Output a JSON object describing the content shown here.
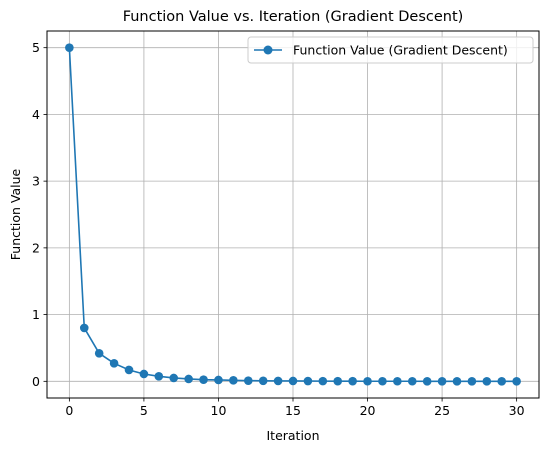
{
  "chart_data": {
    "type": "line",
    "title": "Function Value vs. Iteration (Gradient Descent)",
    "xlabel": "Iteration",
    "ylabel": "Function Value",
    "xlim": [
      -1.5,
      31.5
    ],
    "ylim": [
      -0.25,
      5.25
    ],
    "xticks": [
      0,
      5,
      10,
      15,
      20,
      25,
      30
    ],
    "yticks": [
      0,
      1,
      2,
      3,
      4,
      5
    ],
    "grid": true,
    "legend_position": "top-right",
    "series": [
      {
        "name": "Function Value (Gradient Descent)",
        "color": "#1f77b4",
        "marker": "circle",
        "x": [
          0,
          1,
          2,
          3,
          4,
          5,
          6,
          7,
          8,
          9,
          10,
          11,
          12,
          13,
          14,
          15,
          16,
          17,
          18,
          19,
          20,
          21,
          22,
          23,
          24,
          25,
          26,
          27,
          28,
          29,
          30
        ],
        "values": [
          5.0,
          0.8,
          0.42,
          0.27,
          0.17,
          0.11,
          0.075,
          0.05,
          0.035,
          0.025,
          0.02,
          0.015,
          0.01,
          0.008,
          0.006,
          0.005,
          0.004,
          0.003,
          0.002,
          0.002,
          0.001,
          0.001,
          0.001,
          0.001,
          0.0,
          0.0,
          0.0,
          0.0,
          0.0,
          0.0,
          0.0
        ]
      }
    ]
  }
}
